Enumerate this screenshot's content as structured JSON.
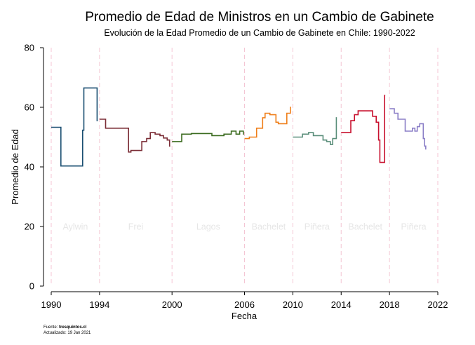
{
  "chart_data": {
    "type": "line",
    "title": "Promedio de Edad de Ministros en un Cambio de Gabinete",
    "subtitle": "Evolución de la Edad Promedio de un Cambio de Gabinete en Chile: 1990-2022",
    "xlabel": "Fecha",
    "ylabel": "Promedio de Edad",
    "xlim": [
      1990,
      2022
    ],
    "ylim": [
      0,
      80
    ],
    "x_ticks": [
      1990,
      1994,
      2000,
      2006,
      2010,
      2014,
      2018,
      2022
    ],
    "y_ticks": [
      0,
      20,
      40,
      60,
      80
    ],
    "grid": false,
    "legend": "none",
    "period_boundaries": [
      1990,
      1994,
      2000,
      2006,
      2010,
      2014,
      2018,
      2022
    ],
    "period_boundary_color": "#f4c6d4",
    "periods": [
      {
        "label": "Aylwin",
        "x": 1992
      },
      {
        "label": "Frei",
        "x": 1997
      },
      {
        "label": "Lagos",
        "x": 2003
      },
      {
        "label": "Bachelet",
        "x": 2008
      },
      {
        "label": "Piñera",
        "x": 2012
      },
      {
        "label": "Bachelet",
        "x": 2016
      },
      {
        "label": "Piñera",
        "x": 2020
      }
    ],
    "series": [
      {
        "color": "#1b4f72",
        "points": [
          [
            1990.0,
            53.3
          ],
          [
            1990.8,
            53.3
          ],
          [
            1990.8,
            40.3
          ],
          [
            1992.6,
            40.3
          ],
          [
            1992.6,
            52.3
          ],
          [
            1992.7,
            52.3
          ],
          [
            1992.7,
            66.5
          ],
          [
            1993.8,
            66.5
          ],
          [
            1993.8,
            55.5
          ],
          [
            1993.85,
            55.5
          ]
        ]
      },
      {
        "color": "#7b2d36",
        "points": [
          [
            1994.0,
            56.0
          ],
          [
            1994.5,
            56.0
          ],
          [
            1994.5,
            53.0
          ],
          [
            1996.4,
            53.0
          ],
          [
            1996.4,
            45.0
          ],
          [
            1996.6,
            45.0
          ],
          [
            1996.6,
            45.5
          ],
          [
            1997.5,
            45.5
          ],
          [
            1997.5,
            48.5
          ],
          [
            1997.9,
            48.5
          ],
          [
            1997.9,
            49.5
          ],
          [
            1998.2,
            49.5
          ],
          [
            1998.2,
            51.5
          ],
          [
            1998.6,
            51.5
          ],
          [
            1998.6,
            51.0
          ],
          [
            1999.0,
            51.0
          ],
          [
            1999.0,
            50.5
          ],
          [
            1999.3,
            50.5
          ],
          [
            1999.3,
            49.7
          ],
          [
            1999.6,
            49.7
          ],
          [
            1999.6,
            49.0
          ],
          [
            1999.8,
            49.0
          ],
          [
            1999.8,
            47.0
          ],
          [
            1999.85,
            47.0
          ]
        ]
      },
      {
        "color": "#3b6b1f",
        "points": [
          [
            2000.0,
            48.5
          ],
          [
            2000.8,
            48.5
          ],
          [
            2000.8,
            51.0
          ],
          [
            2001.6,
            51.0
          ],
          [
            2001.6,
            51.2
          ],
          [
            2003.3,
            51.2
          ],
          [
            2003.3,
            50.5
          ],
          [
            2004.3,
            50.5
          ],
          [
            2004.3,
            51.0
          ],
          [
            2004.9,
            51.0
          ],
          [
            2004.9,
            52.0
          ],
          [
            2005.3,
            52.0
          ],
          [
            2005.3,
            51.0
          ],
          [
            2005.6,
            51.0
          ],
          [
            2005.6,
            52.0
          ],
          [
            2005.9,
            52.0
          ],
          [
            2005.9,
            51.0
          ],
          [
            2005.95,
            51.0
          ]
        ]
      },
      {
        "color": "#ef7f1a",
        "points": [
          [
            2006.0,
            49.5
          ],
          [
            2006.4,
            49.5
          ],
          [
            2006.4,
            50.0
          ],
          [
            2007.0,
            50.0
          ],
          [
            2007.0,
            53.0
          ],
          [
            2007.5,
            53.0
          ],
          [
            2007.5,
            56.5
          ],
          [
            2007.7,
            56.5
          ],
          [
            2007.7,
            58.0
          ],
          [
            2008.1,
            58.0
          ],
          [
            2008.1,
            57.5
          ],
          [
            2008.6,
            57.5
          ],
          [
            2008.6,
            55.0
          ],
          [
            2008.8,
            55.0
          ],
          [
            2008.8,
            54.5
          ],
          [
            2009.5,
            54.5
          ],
          [
            2009.5,
            58.0
          ],
          [
            2009.8,
            58.0
          ],
          [
            2009.8,
            60.0
          ],
          [
            2009.85,
            60.0
          ]
        ]
      },
      {
        "color": "#5a8e7a",
        "points": [
          [
            2010.0,
            50.0
          ],
          [
            2010.8,
            50.0
          ],
          [
            2010.8,
            51.0
          ],
          [
            2011.3,
            51.0
          ],
          [
            2011.3,
            51.5
          ],
          [
            2011.7,
            51.5
          ],
          [
            2011.7,
            50.5
          ],
          [
            2012.5,
            50.5
          ],
          [
            2012.5,
            49.0
          ],
          [
            2012.8,
            49.0
          ],
          [
            2012.8,
            48.5
          ],
          [
            2013.1,
            48.5
          ],
          [
            2013.1,
            47.5
          ],
          [
            2013.3,
            47.5
          ],
          [
            2013.3,
            49.5
          ],
          [
            2013.6,
            49.5
          ],
          [
            2013.6,
            56.5
          ],
          [
            2013.65,
            56.5
          ]
        ]
      },
      {
        "color": "#c8102e",
        "points": [
          [
            2014.0,
            51.5
          ],
          [
            2014.8,
            51.5
          ],
          [
            2014.8,
            55.5
          ],
          [
            2015.1,
            55.5
          ],
          [
            2015.1,
            57.5
          ],
          [
            2015.4,
            57.5
          ],
          [
            2015.4,
            58.8
          ],
          [
            2016.6,
            58.8
          ],
          [
            2016.6,
            57.0
          ],
          [
            2016.9,
            57.0
          ],
          [
            2016.9,
            55.0
          ],
          [
            2017.1,
            55.0
          ],
          [
            2017.1,
            49.0
          ],
          [
            2017.2,
            49.0
          ],
          [
            2017.2,
            41.5
          ],
          [
            2017.6,
            41.5
          ],
          [
            2017.6,
            64.0
          ],
          [
            2017.65,
            64.0
          ]
        ]
      },
      {
        "color": "#8b7fc7",
        "points": [
          [
            2018.0,
            59.5
          ],
          [
            2018.4,
            59.5
          ],
          [
            2018.4,
            58.0
          ],
          [
            2018.7,
            58.0
          ],
          [
            2018.7,
            56.0
          ],
          [
            2019.3,
            56.0
          ],
          [
            2019.3,
            52.0
          ],
          [
            2019.9,
            52.0
          ],
          [
            2019.9,
            53.0
          ],
          [
            2020.1,
            53.0
          ],
          [
            2020.1,
            52.0
          ],
          [
            2020.3,
            52.0
          ],
          [
            2020.3,
            53.5
          ],
          [
            2020.5,
            53.5
          ],
          [
            2020.5,
            54.5
          ],
          [
            2020.8,
            54.5
          ],
          [
            2020.8,
            49.5
          ],
          [
            2020.9,
            49.5
          ],
          [
            2020.9,
            47.0
          ],
          [
            2021.0,
            47.0
          ],
          [
            2021.0,
            46.0
          ],
          [
            2021.05,
            46.0
          ]
        ]
      }
    ]
  },
  "footer": {
    "source_prefix": "Fuente: ",
    "source_name": "tresquintos.cl",
    "updated": "Actualizado: 19 Jan 2021"
  }
}
